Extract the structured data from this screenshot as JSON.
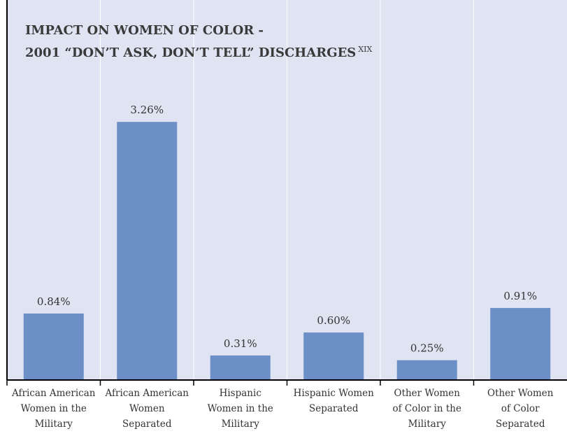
{
  "chart_data": {
    "type": "bar",
    "title": "IMPACT ON WOMEN OF COLOR -",
    "subtitle": "2001 “DON’T ASK, DON’T TELL” DISCHARGES",
    "title_superscript": "XIX",
    "categories": [
      [
        "African American",
        "Women in the",
        "Military"
      ],
      [
        "African American",
        "Women",
        "Separated"
      ],
      [
        "Hispanic",
        "Women in the",
        "Military"
      ],
      [
        "Hispanic Women",
        "Separated"
      ],
      [
        "Other Women",
        "of Color in the",
        "Military"
      ],
      [
        "Other Women",
        "of Color",
        "Separated"
      ]
    ],
    "values": [
      0.84,
      3.26,
      0.31,
      0.6,
      0.25,
      0.91
    ],
    "data_labels": [
      "0.84%",
      "3.26%",
      "0.31%",
      "0.60%",
      "0.25%",
      "0.91%"
    ],
    "unit": "%",
    "ylim": [
      0,
      4.8
    ],
    "xlabel": "",
    "ylabel": "",
    "grid": "vertical",
    "legend": "none",
    "colors": {
      "plot_background": "#dfe3f2",
      "bar": "#6b8fc6",
      "grid": "#ffffff",
      "axis": "#000000",
      "text": "#333333",
      "title": "#3a3a3a"
    }
  }
}
